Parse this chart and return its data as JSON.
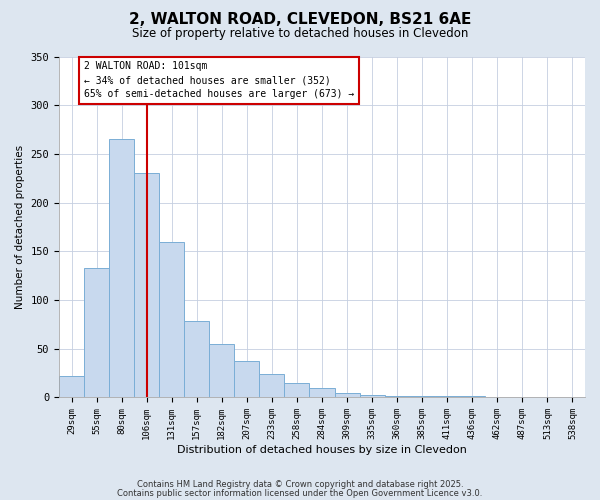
{
  "title": "2, WALTON ROAD, CLEVEDON, BS21 6AE",
  "subtitle": "Size of property relative to detached houses in Clevedon",
  "xlabel": "Distribution of detached houses by size in Clevedon",
  "ylabel": "Number of detached properties",
  "bar_labels": [
    "29sqm",
    "55sqm",
    "80sqm",
    "106sqm",
    "131sqm",
    "157sqm",
    "182sqm",
    "207sqm",
    "233sqm",
    "258sqm",
    "284sqm",
    "309sqm",
    "335sqm",
    "360sqm",
    "385sqm",
    "411sqm",
    "436sqm",
    "462sqm",
    "487sqm",
    "513sqm",
    "538sqm"
  ],
  "bar_values": [
    22,
    133,
    265,
    230,
    160,
    78,
    55,
    37,
    24,
    15,
    10,
    5,
    3,
    2,
    1,
    1,
    1,
    0.5,
    0.5,
    0.5,
    0.5
  ],
  "bar_color": "#c8d9ee",
  "bar_edgecolor": "#7aaed6",
  "vline_index": 3,
  "vline_color": "#cc0000",
  "annotation_title": "2 WALTON ROAD: 101sqm",
  "annotation_line1": "← 34% of detached houses are smaller (352)",
  "annotation_line2": "65% of semi-detached houses are larger (673) →",
  "annotation_box_edgecolor": "#cc0000",
  "annotation_bg": "#ffffff",
  "ylim": [
    0,
    350
  ],
  "yticks": [
    0,
    50,
    100,
    150,
    200,
    250,
    300,
    350
  ],
  "footer1": "Contains HM Land Registry data © Crown copyright and database right 2025.",
  "footer2": "Contains public sector information licensed under the Open Government Licence v3.0.",
  "bg_color": "#dde6f0",
  "plot_bg_color": "#ffffff",
  "grid_color": "#c5cfe0"
}
